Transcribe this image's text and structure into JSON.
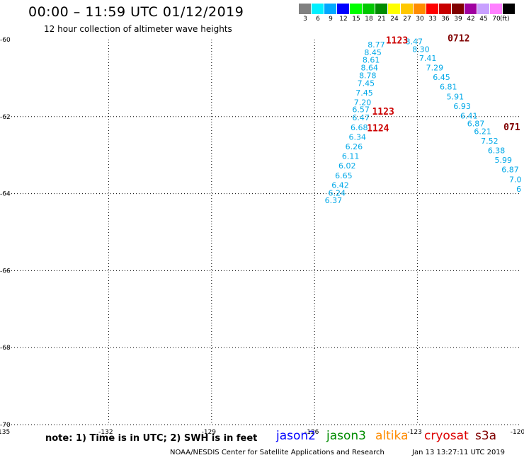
{
  "header": {
    "title": "00:00 – 11:59 UTC 01/12/2019",
    "subtitle": "12 hour collection of altimeter wave heights"
  },
  "color_scale": {
    "bins": [
      {
        "label": "3",
        "color": "#808080"
      },
      {
        "label": "6",
        "color": "#00f0ff"
      },
      {
        "label": "9",
        "color": "#00a8ff"
      },
      {
        "label": "12",
        "color": "#0000ff"
      },
      {
        "label": "15",
        "color": "#00ff00"
      },
      {
        "label": "18",
        "color": "#00c800"
      },
      {
        "label": "21",
        "color": "#008c00"
      },
      {
        "label": "24",
        "color": "#ffff00"
      },
      {
        "label": "27",
        "color": "#ffc800"
      },
      {
        "label": "30",
        "color": "#ff8c00"
      },
      {
        "label": "33",
        "color": "#ff0000"
      },
      {
        "label": "36",
        "color": "#c80000"
      },
      {
        "label": "39",
        "color": "#800000"
      },
      {
        "label": "42",
        "color": "#a000a0"
      },
      {
        "label": "45",
        "color": "#c8a0ff"
      },
      {
        "label": "70",
        "color": "#ff80ff"
      },
      {
        "label": "",
        "color": "#000000"
      }
    ],
    "unit": "(ft)"
  },
  "map": {
    "lon_range": [
      -135,
      -120
    ],
    "lat_range": [
      -70,
      -60
    ],
    "lon_ticks": [
      {
        "value": -135,
        "label": "-135"
      },
      {
        "value": -132,
        "label": "-132"
      },
      {
        "value": -129,
        "label": "-129"
      },
      {
        "value": -126,
        "label": "-126"
      },
      {
        "value": -123,
        "label": "-123"
      },
      {
        "value": -120,
        "label": "-120"
      }
    ],
    "lat_ticks": [
      {
        "value": -60,
        "label": "-60"
      },
      {
        "value": -62,
        "label": "-62"
      },
      {
        "value": -64,
        "label": "-64"
      },
      {
        "value": -66,
        "label": "-66"
      },
      {
        "value": -68,
        "label": "-68"
      },
      {
        "value": -70,
        "label": "-70"
      }
    ],
    "point_color": "#00a8e8",
    "tracks": [
      {
        "points": [
          {
            "lon": -124.2,
            "lat": -60.2,
            "value": "8.77"
          },
          {
            "lon": -124.3,
            "lat": -60.4,
            "value": "8.45"
          },
          {
            "lon": -124.35,
            "lat": -60.6,
            "value": "8.61"
          },
          {
            "lon": -124.4,
            "lat": -60.8,
            "value": "8.64"
          },
          {
            "lon": -124.45,
            "lat": -61.0,
            "value": "8.78"
          },
          {
            "lon": -124.5,
            "lat": -61.2,
            "value": "7.45"
          },
          {
            "lon": -124.55,
            "lat": -61.45,
            "value": "7.45"
          },
          {
            "lon": -124.6,
            "lat": -61.7,
            "value": "7.20"
          },
          {
            "lon": -124.65,
            "lat": -61.88,
            "value": "6.57"
          },
          {
            "lon": -124.65,
            "lat": -62.1,
            "value": "6.47"
          },
          {
            "lon": -124.7,
            "lat": -62.35,
            "value": "6.68"
          },
          {
            "lon": -124.75,
            "lat": -62.6,
            "value": "6.34"
          },
          {
            "lon": -124.85,
            "lat": -62.85,
            "value": "6.26"
          },
          {
            "lon": -124.95,
            "lat": -63.1,
            "value": "6.11"
          },
          {
            "lon": -125.05,
            "lat": -63.35,
            "value": "6.02"
          },
          {
            "lon": -125.15,
            "lat": -63.6,
            "value": "6.65"
          },
          {
            "lon": -125.25,
            "lat": -63.85,
            "value": "6.42"
          },
          {
            "lon": -125.35,
            "lat": -64.05,
            "value": "6.24"
          },
          {
            "lon": -125.45,
            "lat": -64.25,
            "value": "6.37"
          }
        ]
      },
      {
        "points": [
          {
            "lon": -123.1,
            "lat": -60.12,
            "value": "8.47"
          },
          {
            "lon": -122.9,
            "lat": -60.32,
            "value": "8.30"
          },
          {
            "lon": -122.7,
            "lat": -60.55,
            "value": "7.41"
          },
          {
            "lon": -122.5,
            "lat": -60.8,
            "value": "7.29"
          },
          {
            "lon": -122.3,
            "lat": -61.05,
            "value": "6.45"
          },
          {
            "lon": -122.1,
            "lat": -61.3,
            "value": "6.81"
          },
          {
            "lon": -121.9,
            "lat": -61.55,
            "value": "5.91"
          },
          {
            "lon": -121.7,
            "lat": -61.8,
            "value": "6.93"
          },
          {
            "lon": -121.5,
            "lat": -62.05,
            "value": "6.41"
          },
          {
            "lon": -121.3,
            "lat": -62.25,
            "value": "6.87"
          },
          {
            "lon": -121.1,
            "lat": -62.45,
            "value": "6.21"
          },
          {
            "lon": -120.9,
            "lat": -62.7,
            "value": "7.52"
          },
          {
            "lon": -120.7,
            "lat": -62.95,
            "value": "6.38"
          },
          {
            "lon": -120.5,
            "lat": -63.2,
            "value": "5.99"
          },
          {
            "lon": -120.3,
            "lat": -63.45,
            "value": "6.87"
          },
          {
            "lon": -120.15,
            "lat": -63.7,
            "value": "7.0"
          },
          {
            "lon": -120.05,
            "lat": -63.95,
            "value": "6"
          }
        ]
      }
    ],
    "time_labels": [
      {
        "text": "1123",
        "lon": -123.6,
        "lat": -60.1,
        "color": "#cc0000"
      },
      {
        "text": "0712",
        "lon": -121.8,
        "lat": -60.05,
        "color": "#800000"
      },
      {
        "text": "1123",
        "lon": -124.0,
        "lat": -61.95,
        "color": "#cc0000"
      },
      {
        "text": "1124",
        "lon": -124.15,
        "lat": -62.38,
        "color": "#cc0000"
      },
      {
        "text": "071",
        "lon": -120.25,
        "lat": -62.35,
        "color": "#800000"
      }
    ]
  },
  "footer": {
    "note": "note: 1) Time is in UTC; 2) SWH is in feet",
    "satellites": [
      {
        "name": "jason2",
        "color": "#0000ff"
      },
      {
        "name": "jason3",
        "color": "#008c00"
      },
      {
        "name": "altika",
        "color": "#ff8c00"
      },
      {
        "name": "cryosat",
        "color": "#dd0000"
      },
      {
        "name": "s3a",
        "color": "#800000"
      }
    ],
    "credit": "NOAA/NESDIS Center for Satellite Applications and Research",
    "timestamp": "Jan 13 13:27:11 UTC 2019"
  }
}
